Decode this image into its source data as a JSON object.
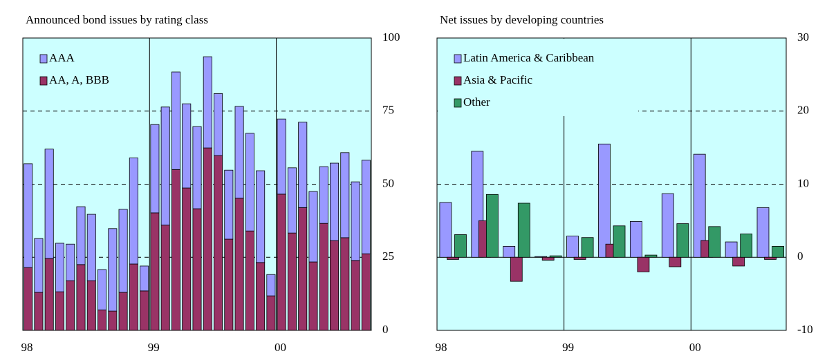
{
  "chart_data": [
    {
      "type": "bar",
      "stacked": true,
      "title": "Announced bond issues by rating class",
      "categories": [
        "98",
        null,
        null,
        null,
        null,
        null,
        null,
        null,
        null,
        null,
        null,
        null,
        "99",
        null,
        null,
        null,
        null,
        null,
        null,
        null,
        null,
        null,
        null,
        null,
        "00",
        null,
        null,
        null,
        null,
        null,
        null,
        null,
        null
      ],
      "series": [
        {
          "name": "AA, A, BBB",
          "color": "#993366",
          "values": [
            21.5,
            13,
            24.6,
            13.2,
            17,
            22.5,
            17,
            7,
            6.6,
            13,
            22.7,
            13.5,
            40.2,
            36,
            55,
            48.7,
            41.6,
            62.4,
            59.8,
            31.2,
            45.2,
            34,
            23.2,
            11.8,
            46.6,
            33.3,
            42,
            23.4,
            36.6,
            30.7,
            31.7,
            23.9,
            26.2
          ]
        },
        {
          "name": "AAA",
          "color": "#9999ff",
          "values": [
            35.5,
            18.4,
            37.4,
            16.6,
            12.5,
            19.8,
            22.7,
            13.8,
            28.2,
            28.4,
            36.3,
            8.5,
            30.2,
            40.4,
            33.4,
            28.8,
            28.1,
            31.2,
            21.2,
            23.6,
            31.4,
            33.4,
            31.4,
            7.3,
            25.7,
            22.3,
            29.2,
            24.1,
            19.4,
            26.5,
            29.1,
            26.9,
            32
          ]
        }
      ],
      "legend_order": [
        "AAA",
        "AA, A, BBB"
      ],
      "ylim": [
        0,
        100
      ],
      "yticks": [
        0,
        25,
        50,
        75,
        100
      ],
      "grid": true
    },
    {
      "type": "bar",
      "stacked": false,
      "title": "Net issues by developing countries",
      "categories": [
        "98",
        null,
        null,
        null,
        "99",
        null,
        null,
        null,
        "00",
        null,
        null
      ],
      "series": [
        {
          "name": "Latin America & Caribbean",
          "color": "#9999ff",
          "values": [
            7.5,
            14.5,
            1.5,
            0.1,
            2.9,
            15.5,
            4.9,
            8.7,
            14.1,
            2.1,
            6.8
          ]
        },
        {
          "name": "Asia & Pacific",
          "color": "#993366",
          "values": [
            -0.3,
            5,
            -3.3,
            -0.4,
            -0.3,
            1.8,
            -2,
            -1.3,
            2.3,
            -1.2,
            -0.3
          ]
        },
        {
          "name": "Other",
          "color": "#339966",
          "values": [
            3.1,
            8.6,
            7.4,
            0.2,
            2.7,
            4.3,
            0.3,
            4.6,
            4.2,
            3.2,
            1.5
          ]
        }
      ],
      "ylim": [
        -10,
        30
      ],
      "yticks": [
        -10,
        0,
        10,
        20,
        30
      ],
      "grid": true
    }
  ]
}
